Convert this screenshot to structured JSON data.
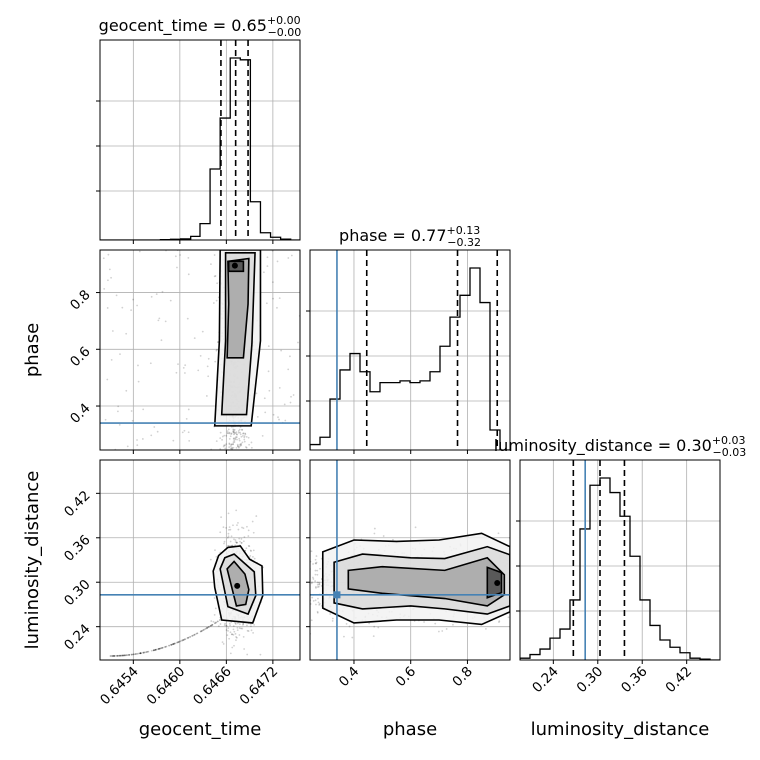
{
  "chart_data": {
    "type": "corner",
    "parameters": [
      "geocent_time",
      "phase",
      "luminosity_distance"
    ],
    "truth_color": "#4682b4",
    "truths": {
      "geocent_time": null,
      "phase": 0.34,
      "luminosity_distance": 0.283
    },
    "titles": [
      {
        "param": "geocent_time",
        "text": "geocent_time = 0.65",
        "plus": "+0.00",
        "minus": "−0.00"
      },
      {
        "param": "phase",
        "text": "phase = 0.77",
        "plus": "+0.13",
        "minus": "−0.32"
      },
      {
        "param": "luminosity_distance",
        "text": "luminosity_distance = 0.30",
        "plus": "+0.03",
        "minus": "−0.03"
      }
    ],
    "axes": {
      "geocent_time": {
        "range": [
          0.64497,
          0.64755
        ],
        "ticks": [
          "0.6454",
          "0.6460",
          "0.6466",
          "0.6472"
        ],
        "tick_values": [
          0.6454,
          0.646,
          0.6466,
          0.6472
        ]
      },
      "phase": {
        "range": [
          0.245,
          0.95
        ],
        "ticks": [
          "0.4",
          "0.6",
          "0.8"
        ],
        "tick_values": [
          0.4,
          0.6,
          0.8
        ]
      },
      "luminosity_distance": {
        "range": [
          0.195,
          0.465
        ],
        "ticks": [
          "0.24",
          "0.30",
          "0.36",
          "0.42"
        ],
        "tick_values": [
          0.24,
          0.3,
          0.36,
          0.42
        ]
      }
    },
    "marginals": {
      "geocent_time": {
        "bin_edges": [
          0.64497,
          0.6451,
          0.64523,
          0.64536,
          0.64549,
          0.64562,
          0.64575,
          0.64588,
          0.64601,
          0.64614,
          0.64626,
          0.64639,
          0.64652,
          0.64665,
          0.64678,
          0.64691,
          0.64704,
          0.64717,
          0.6473,
          0.64743,
          0.64755
        ],
        "counts": [
          0,
          0,
          0,
          0,
          0,
          0,
          0.002,
          0.004,
          0.006,
          0.02,
          0.09,
          0.39,
          0.67,
          1.0,
          0.99,
          0.21,
          0.04,
          0.015,
          0.005,
          0
        ],
        "quantiles": [
          0.64653,
          0.64672,
          0.64688
        ]
      },
      "phase": {
        "bin_edges": [
          0.245,
          0.28025,
          0.3155,
          0.35075,
          0.386,
          0.42125,
          0.4565,
          0.49175,
          0.527,
          0.56225,
          0.5975,
          0.63275,
          0.668,
          0.70325,
          0.7385,
          0.77375,
          0.809,
          0.84425,
          0.8795,
          0.91475,
          0.95
        ],
        "counts": [
          0.03,
          0.07,
          0.28,
          0.44,
          0.53,
          0.43,
          0.32,
          0.37,
          0.37,
          0.38,
          0.37,
          0.38,
          0.43,
          0.57,
          0.73,
          0.85,
          1.0,
          0.81,
          0.11,
          0.0
        ],
        "quantiles": [
          0.445,
          0.765,
          0.905
        ]
      },
      "luminosity_distance": {
        "bin_edges": [
          0.195,
          0.2085,
          0.222,
          0.2355,
          0.249,
          0.2625,
          0.276,
          0.2895,
          0.303,
          0.3165,
          0.33,
          0.3435,
          0.357,
          0.3705,
          0.384,
          0.3975,
          0.411,
          0.4245,
          0.438,
          0.4515,
          0.465
        ],
        "counts": [
          0.01,
          0.03,
          0.06,
          0.12,
          0.17,
          0.33,
          0.72,
          0.96,
          1.0,
          0.92,
          0.79,
          0.57,
          0.33,
          0.19,
          0.11,
          0.07,
          0.04,
          0.01,
          0.005,
          0
        ],
        "quantiles": [
          0.267,
          0.303,
          0.336
        ]
      }
    },
    "joint": [
      {
        "x": "geocent_time",
        "y": "phase",
        "mode": [
          0.64671,
          0.895
        ],
        "level_shapes": [
          [
            [
              0.64645,
              0.33
            ],
            [
              0.64692,
              0.33
            ],
            [
              0.64704,
              0.63
            ],
            [
              0.64704,
              0.95
            ],
            [
              0.64652,
              0.95
            ],
            [
              0.64651,
              0.63
            ]
          ],
          [
            [
              0.64654,
              0.37
            ],
            [
              0.64686,
              0.37
            ],
            [
              0.64693,
              0.62
            ],
            [
              0.64697,
              0.94
            ],
            [
              0.64659,
              0.94
            ],
            [
              0.64659,
              0.63
            ]
          ],
          [
            [
              0.64661,
              0.57
            ],
            [
              0.64682,
              0.57
            ],
            [
              0.64688,
              0.76
            ],
            [
              0.64689,
              0.92
            ],
            [
              0.64662,
              0.91
            ],
            [
              0.64663,
              0.76
            ]
          ],
          [
            [
              0.64663,
              0.875
            ],
            [
              0.64682,
              0.875
            ],
            [
              0.64682,
              0.91
            ],
            [
              0.64663,
              0.91
            ]
          ]
        ]
      },
      {
        "x": "geocent_time",
        "y": "luminosity_distance",
        "mode": [
          0.64674,
          0.295
        ],
        "level_shapes": [
          [
            [
              0.64645,
              0.293
            ],
            [
              0.64654,
              0.249
            ],
            [
              0.64694,
              0.245
            ],
            [
              0.64707,
              0.282
            ],
            [
              0.64706,
              0.322
            ],
            [
              0.6469,
              0.331
            ],
            [
              0.64678,
              0.349
            ],
            [
              0.64662,
              0.347
            ],
            [
              0.6465,
              0.336
            ],
            [
              0.64643,
              0.315
            ]
          ],
          [
            [
              0.64652,
              0.318
            ],
            [
              0.64662,
              0.267
            ],
            [
              0.64688,
              0.257
            ],
            [
              0.64698,
              0.282
            ],
            [
              0.64696,
              0.314
            ],
            [
              0.64683,
              0.326
            ],
            [
              0.6467,
              0.338
            ],
            [
              0.64658,
              0.333
            ]
          ],
          [
            [
              0.64661,
              0.318
            ],
            [
              0.64673,
              0.268
            ],
            [
              0.64685,
              0.27
            ],
            [
              0.64689,
              0.29
            ],
            [
              0.64684,
              0.311
            ],
            [
              0.6467,
              0.328
            ]
          ]
        ]
      },
      {
        "x": "phase",
        "y": "luminosity_distance",
        "mode": [
          0.905,
          0.299
        ],
        "level_shapes": [
          [
            [
              0.29,
              0.341
            ],
            [
              0.4,
              0.357
            ],
            [
              0.55,
              0.355
            ],
            [
              0.7,
              0.357
            ],
            [
              0.85,
              0.366
            ],
            [
              0.95,
              0.348
            ],
            [
              0.95,
              0.26
            ],
            [
              0.85,
              0.243
            ],
            [
              0.7,
              0.249
            ],
            [
              0.55,
              0.249
            ],
            [
              0.4,
              0.245
            ],
            [
              0.29,
              0.265
            ]
          ],
          [
            [
              0.33,
              0.327
            ],
            [
              0.43,
              0.338
            ],
            [
              0.6,
              0.333
            ],
            [
              0.72,
              0.332
            ],
            [
              0.87,
              0.348
            ],
            [
              0.95,
              0.337
            ],
            [
              0.95,
              0.268
            ],
            [
              0.87,
              0.257
            ],
            [
              0.72,
              0.264
            ],
            [
              0.6,
              0.268
            ],
            [
              0.43,
              0.264
            ],
            [
              0.33,
              0.272
            ]
          ],
          [
            [
              0.38,
              0.316
            ],
            [
              0.5,
              0.321
            ],
            [
              0.72,
              0.316
            ],
            [
              0.87,
              0.333
            ],
            [
              0.93,
              0.31
            ],
            [
              0.93,
              0.283
            ],
            [
              0.87,
              0.268
            ],
            [
              0.72,
              0.278
            ],
            [
              0.5,
              0.285
            ],
            [
              0.38,
              0.291
            ]
          ],
          [
            [
              0.87,
              0.32
            ],
            [
              0.92,
              0.313
            ],
            [
              0.92,
              0.286
            ],
            [
              0.87,
              0.279
            ]
          ]
        ]
      }
    ]
  }
}
